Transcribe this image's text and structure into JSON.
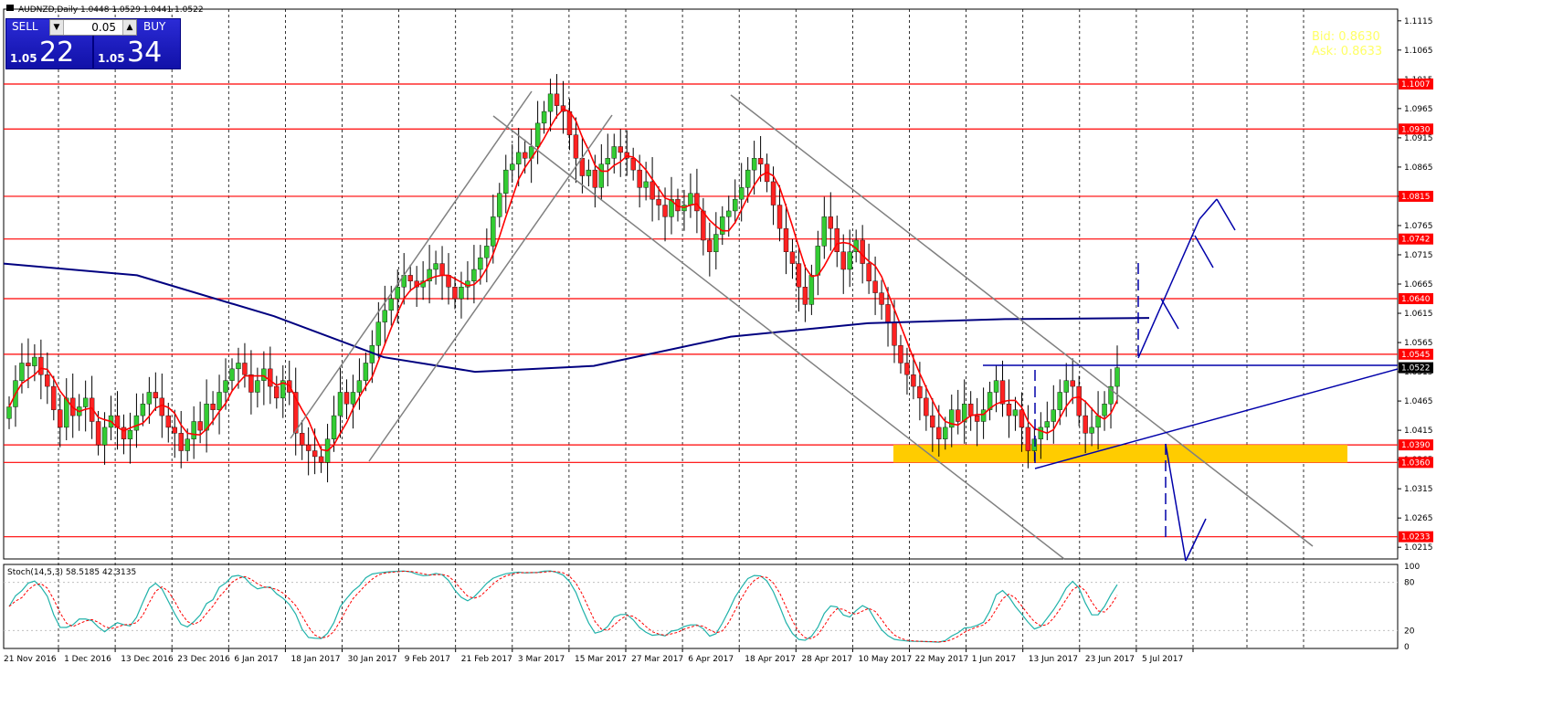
{
  "header": {
    "symbol_info": "AUDNZD,Daily  1.0448 1.0529 1.0441 1.0522"
  },
  "trade_panel": {
    "sell_label": "SELL",
    "buy_label": "BUY",
    "lot": "0.05",
    "sell_price_small": "1.05",
    "sell_price_big": "22",
    "buy_price_small": "1.05",
    "buy_price_big": "34"
  },
  "overlay_info": {
    "bid": "Bid: 0.8630",
    "ask": "Ask: 0.8633"
  },
  "stoch_label": "Stoch(14,5,3) 58.5185 42.3135",
  "colors": {
    "bull": "#33cc33",
    "bear": "#ff2222",
    "red_line": "#ff0000",
    "blue_ma": "#000080",
    "channel": "#808080",
    "zone": "#ffcc00",
    "stoch_main": "#20b2aa",
    "stoch_signal": "#ff0000",
    "trend_blue": "#0000aa"
  },
  "chart_data": {
    "type": "candlestick",
    "symbol": "AUDNZD",
    "timeframe": "Daily",
    "ylim": [
      1.0195,
      1.1135
    ],
    "y_ticks": [
      "1.1115",
      "1.1065",
      "1.1015",
      "1.0965",
      "1.0915",
      "1.0865",
      "1.0815",
      "1.0765",
      "1.0715",
      "1.0665",
      "1.0615",
      "1.0565",
      "1.0515",
      "1.0465",
      "1.0415",
      "1.0365",
      "1.0315",
      "1.0265",
      "1.0215"
    ],
    "x_labels": [
      "21 Nov 2016",
      "1 Dec 2016",
      "13 Dec 2016",
      "23 Dec 2016",
      "6 Jan 2017",
      "18 Jan 2017",
      "30 Jan 2017",
      "9 Feb 2017",
      "21 Feb 2017",
      "3 Mar 2017",
      "15 Mar 2017",
      "27 Mar 2017",
      "6 Apr 2017",
      "18 Apr 2017",
      "28 Apr 2017",
      "10 May 2017",
      "22 May 2017",
      "1 Jun 2017",
      "13 Jun 2017",
      "23 Jun 2017",
      "5 Jul 2017"
    ],
    "horizontal_levels": [
      {
        "value": 1.1007,
        "label": "1.1007"
      },
      {
        "value": 1.093,
        "label": "1.0930"
      },
      {
        "value": 1.0815,
        "label": "1.0815"
      },
      {
        "value": 1.0742,
        "label": "1.0742"
      },
      {
        "value": 1.064,
        "label": "1.0640"
      },
      {
        "value": 1.0545,
        "label": "1.0545"
      },
      {
        "value": 1.039,
        "label": "1.0390"
      },
      {
        "value": 1.036,
        "label": "1.0360"
      },
      {
        "value": 1.0233,
        "label": "1.0233"
      }
    ],
    "current_price": {
      "value": 1.0522,
      "label": "1.0522"
    },
    "stoch_levels": [
      "100",
      "80",
      "20",
      "0"
    ],
    "closes": [
      1.0455,
      1.05,
      1.053,
      1.0525,
      1.054,
      1.051,
      1.049,
      1.045,
      1.042,
      1.047,
      1.044,
      1.0455,
      1.047,
      1.043,
      1.039,
      1.042,
      1.044,
      1.042,
      1.04,
      1.0415,
      1.044,
      1.046,
      1.048,
      1.047,
      1.044,
      1.042,
      1.041,
      1.038,
      1.04,
      1.043,
      1.0415,
      1.046,
      1.045,
      1.048,
      1.05,
      1.052,
      1.053,
      1.051,
      1.048,
      1.05,
      1.052,
      1.049,
      1.047,
      1.05,
      1.048,
      1.041,
      1.039,
      1.038,
      1.037,
      1.036,
      1.04,
      1.044,
      1.048,
      1.046,
      1.048,
      1.05,
      1.053,
      1.056,
      1.06,
      1.062,
      1.064,
      1.066,
      1.068,
      1.067,
      1.066,
      1.067,
      1.069,
      1.07,
      1.068,
      1.066,
      1.064,
      1.066,
      1.067,
      1.069,
      1.071,
      1.073,
      1.078,
      1.082,
      1.086,
      1.087,
      1.089,
      1.088,
      1.09,
      1.094,
      1.096,
      1.099,
      1.097,
      1.096,
      1.092,
      1.088,
      1.085,
      1.086,
      1.083,
      1.087,
      1.088,
      1.09,
      1.089,
      1.088,
      1.086,
      1.083,
      1.084,
      1.081,
      1.08,
      1.078,
      1.081,
      1.079,
      1.08,
      1.082,
      1.079,
      1.074,
      1.072,
      1.075,
      1.078,
      1.079,
      1.081,
      1.083,
      1.086,
      1.088,
      1.087,
      1.084,
      1.08,
      1.076,
      1.072,
      1.07,
      1.066,
      1.063,
      1.068,
      1.073,
      1.078,
      1.076,
      1.072,
      1.069,
      1.072,
      1.074,
      1.07,
      1.067,
      1.065,
      1.063,
      1.06,
      1.056,
      1.053,
      1.051,
      1.049,
      1.047,
      1.044,
      1.042,
      1.04,
      1.042,
      1.045,
      1.043,
      1.046,
      1.044,
      1.043,
      1.045,
      1.048,
      1.05,
      1.046,
      1.044,
      1.045,
      1.042,
      1.038,
      1.04,
      1.042,
      1.043,
      1.045,
      1.048,
      1.05,
      1.049,
      1.044,
      1.041,
      1.042,
      1.044,
      1.046,
      1.049,
      1.0522
    ]
  }
}
